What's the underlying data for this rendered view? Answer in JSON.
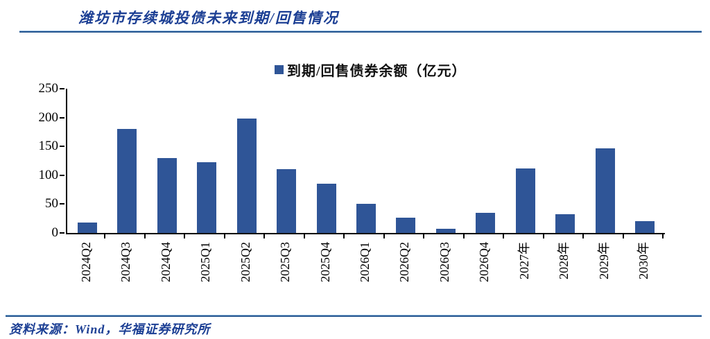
{
  "title": "潍坊市存续城投债未来到期/回售情况",
  "legend": {
    "marker_color": "#2f5597",
    "label": "到期/回售债券余额（亿元）"
  },
  "chart_data": {
    "type": "bar",
    "title": "潍坊市存续城投债未来到期/回售情况",
    "series_name": "到期/回售债券余额（亿元）",
    "categories": [
      "2024Q2",
      "2024Q3",
      "2024Q4",
      "2025Q1",
      "2025Q2",
      "2025Q3",
      "2025Q4",
      "2026Q1",
      "2026Q2",
      "2026Q3",
      "2026Q4",
      "2027年",
      "2028年",
      "2029年",
      "2030年"
    ],
    "values": [
      18,
      180,
      130,
      123,
      198,
      111,
      85,
      51,
      27,
      7,
      35,
      112,
      32,
      147,
      21
    ],
    "ylabel": "",
    "xlabel": "",
    "ylim": [
      0,
      250
    ],
    "yticks": [
      0,
      50,
      100,
      150,
      200,
      250
    ],
    "grid": false,
    "legend_position": "top",
    "bar_color": "#2f5597"
  },
  "footer": {
    "source": "资料来源：Wind，华福证券研究所"
  },
  "colors": {
    "title_blue": "#1c3f94",
    "bar_blue": "#2f5597",
    "rule_light_blue": "#9dc3e6",
    "rule_dark_blue": "#24558f",
    "axis_black": "#000000"
  }
}
